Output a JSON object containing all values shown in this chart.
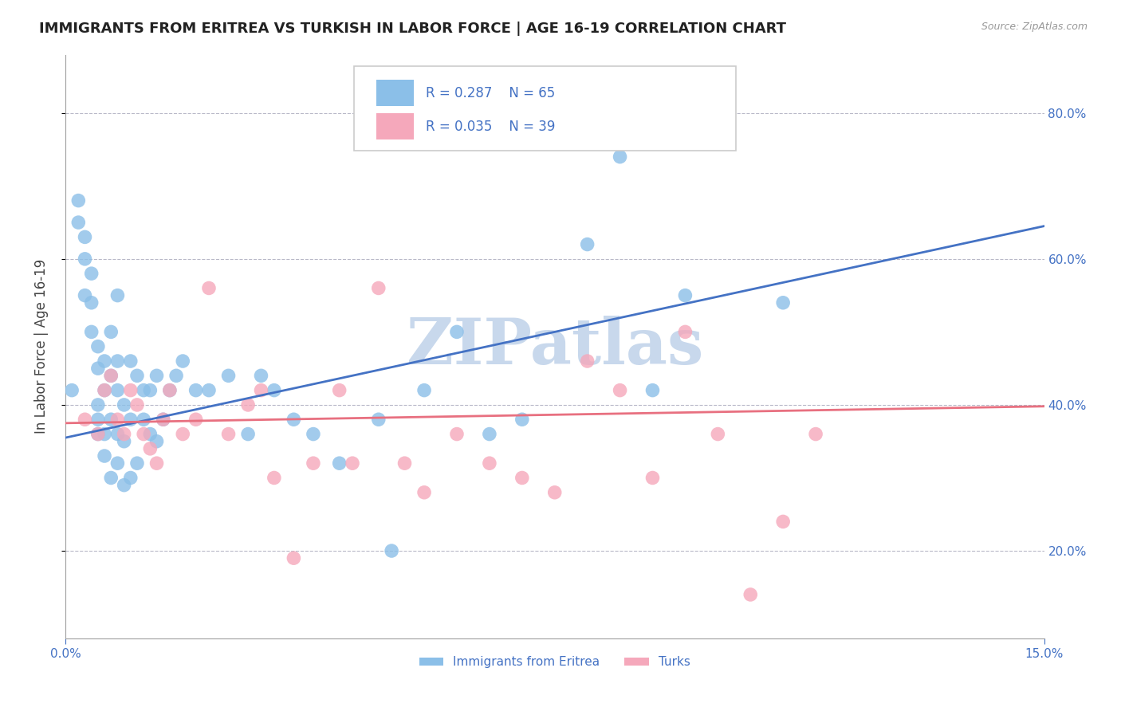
{
  "title": "IMMIGRANTS FROM ERITREA VS TURKISH IN LABOR FORCE | AGE 16-19 CORRELATION CHART",
  "source_text": "Source: ZipAtlas.com",
  "ylabel": "In Labor Force | Age 16-19",
  "xlim": [
    0.0,
    0.15
  ],
  "ylim": [
    0.08,
    0.88
  ],
  "xticks": [
    0.0,
    0.15
  ],
  "xticklabels": [
    "0.0%",
    "15.0%"
  ],
  "yticks": [
    0.2,
    0.4,
    0.6,
    0.8
  ],
  "yticklabels": [
    "20.0%",
    "40.0%",
    "60.0%",
    "80.0%"
  ],
  "title_fontsize": 13,
  "axis_label_fontsize": 12,
  "tick_fontsize": 11,
  "legend_R1": "R = 0.287",
  "legend_N1": "N = 65",
  "legend_R2": "R = 0.035",
  "legend_N2": "N = 39",
  "legend_label1": "Immigrants from Eritrea",
  "legend_label2": "Turks",
  "color_eritrea": "#8BBFE8",
  "color_turks": "#F5A8BB",
  "color_line_eritrea": "#4472C4",
  "color_line_turks": "#E87080",
  "color_axis_text": "#4472C4",
  "color_title": "#222222",
  "watermark_color": "#C8D8EC",
  "eritrea_x": [
    0.001,
    0.002,
    0.002,
    0.003,
    0.003,
    0.003,
    0.004,
    0.004,
    0.004,
    0.005,
    0.005,
    0.005,
    0.005,
    0.005,
    0.006,
    0.006,
    0.006,
    0.006,
    0.007,
    0.007,
    0.007,
    0.007,
    0.008,
    0.008,
    0.008,
    0.008,
    0.008,
    0.009,
    0.009,
    0.009,
    0.01,
    0.01,
    0.01,
    0.011,
    0.011,
    0.012,
    0.012,
    0.013,
    0.013,
    0.014,
    0.014,
    0.015,
    0.016,
    0.017,
    0.018,
    0.02,
    0.022,
    0.025,
    0.028,
    0.03,
    0.032,
    0.035,
    0.038,
    0.042,
    0.048,
    0.05,
    0.055,
    0.06,
    0.065,
    0.07,
    0.08,
    0.085,
    0.09,
    0.095,
    0.11
  ],
  "eritrea_y": [
    0.42,
    0.65,
    0.68,
    0.63,
    0.6,
    0.55,
    0.58,
    0.5,
    0.54,
    0.36,
    0.38,
    0.4,
    0.45,
    0.48,
    0.33,
    0.36,
    0.42,
    0.46,
    0.3,
    0.38,
    0.44,
    0.5,
    0.32,
    0.36,
    0.42,
    0.46,
    0.55,
    0.29,
    0.35,
    0.4,
    0.3,
    0.38,
    0.46,
    0.32,
    0.44,
    0.38,
    0.42,
    0.36,
    0.42,
    0.35,
    0.44,
    0.38,
    0.42,
    0.44,
    0.46,
    0.42,
    0.42,
    0.44,
    0.36,
    0.44,
    0.42,
    0.38,
    0.36,
    0.32,
    0.38,
    0.2,
    0.42,
    0.5,
    0.36,
    0.38,
    0.62,
    0.74,
    0.42,
    0.55,
    0.54
  ],
  "turks_x": [
    0.003,
    0.005,
    0.006,
    0.007,
    0.008,
    0.009,
    0.01,
    0.011,
    0.012,
    0.013,
    0.014,
    0.015,
    0.016,
    0.018,
    0.02,
    0.022,
    0.025,
    0.028,
    0.03,
    0.032,
    0.035,
    0.038,
    0.042,
    0.044,
    0.048,
    0.052,
    0.055,
    0.06,
    0.065,
    0.07,
    0.075,
    0.08,
    0.085,
    0.09,
    0.095,
    0.1,
    0.105,
    0.11,
    0.115
  ],
  "turks_y": [
    0.38,
    0.36,
    0.42,
    0.44,
    0.38,
    0.36,
    0.42,
    0.4,
    0.36,
    0.34,
    0.32,
    0.38,
    0.42,
    0.36,
    0.38,
    0.56,
    0.36,
    0.4,
    0.42,
    0.3,
    0.19,
    0.32,
    0.42,
    0.32,
    0.56,
    0.32,
    0.28,
    0.36,
    0.32,
    0.3,
    0.28,
    0.46,
    0.42,
    0.3,
    0.5,
    0.36,
    0.14,
    0.24,
    0.36
  ],
  "trend_eritrea_x0": 0.0,
  "trend_eritrea_y0": 0.355,
  "trend_eritrea_x1": 0.15,
  "trend_eritrea_y1": 0.645,
  "trend_turks_x0": 0.0,
  "trend_turks_y0": 0.375,
  "trend_turks_x1": 0.15,
  "trend_turks_y1": 0.398
}
